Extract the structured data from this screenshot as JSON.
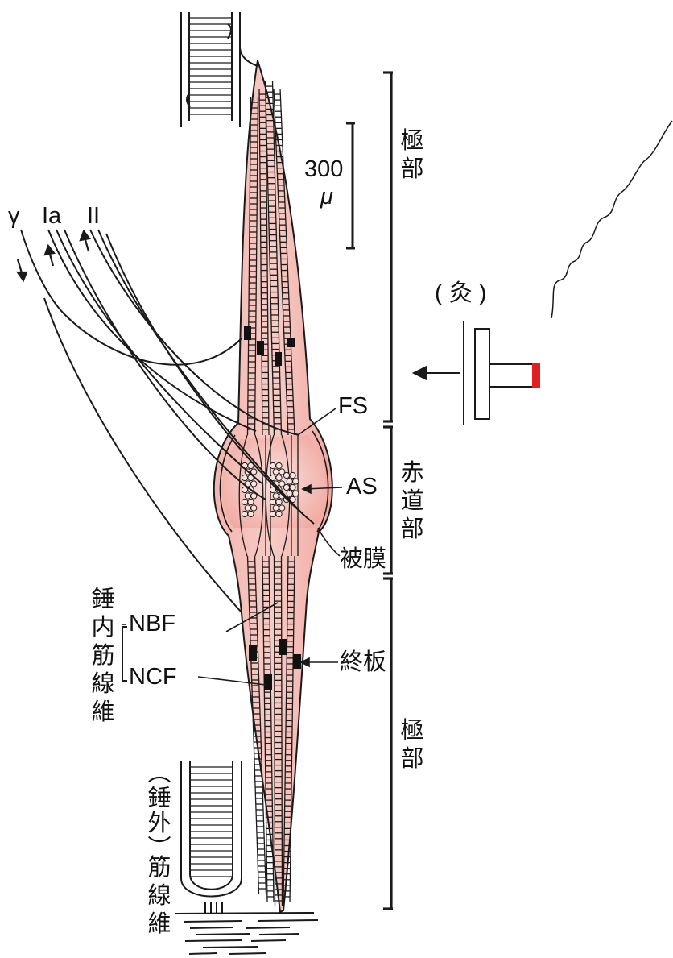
{
  "labels": {
    "gamma": "γ",
    "ia": "Ia",
    "ii": "II",
    "scale_value": "300",
    "scale_unit": "μ",
    "moxa": "( 灸 )",
    "fs": "FS",
    "as": "AS",
    "capsule": "被膜",
    "endplate": "終板",
    "nbf": "NBF",
    "ncf": "NCF",
    "intrafusal": [
      "錘",
      "内",
      "筋",
      "線",
      "維"
    ],
    "polar_top": [
      "極",
      "部"
    ],
    "equatorial": [
      "赤",
      "道",
      "部"
    ],
    "polar_bottom": [
      "極",
      "部"
    ],
    "extrafusal_paren": [
      "︵",
      "錘",
      "外",
      "︶"
    ],
    "extrafusal_fiber": [
      "筋",
      "線",
      "維"
    ]
  },
  "colors": {
    "spindle_fill": "#f3b7b0",
    "spindle_core": "#e98f88",
    "stroke": "#1a1a1a",
    "moxa_tip": "#e02020"
  }
}
